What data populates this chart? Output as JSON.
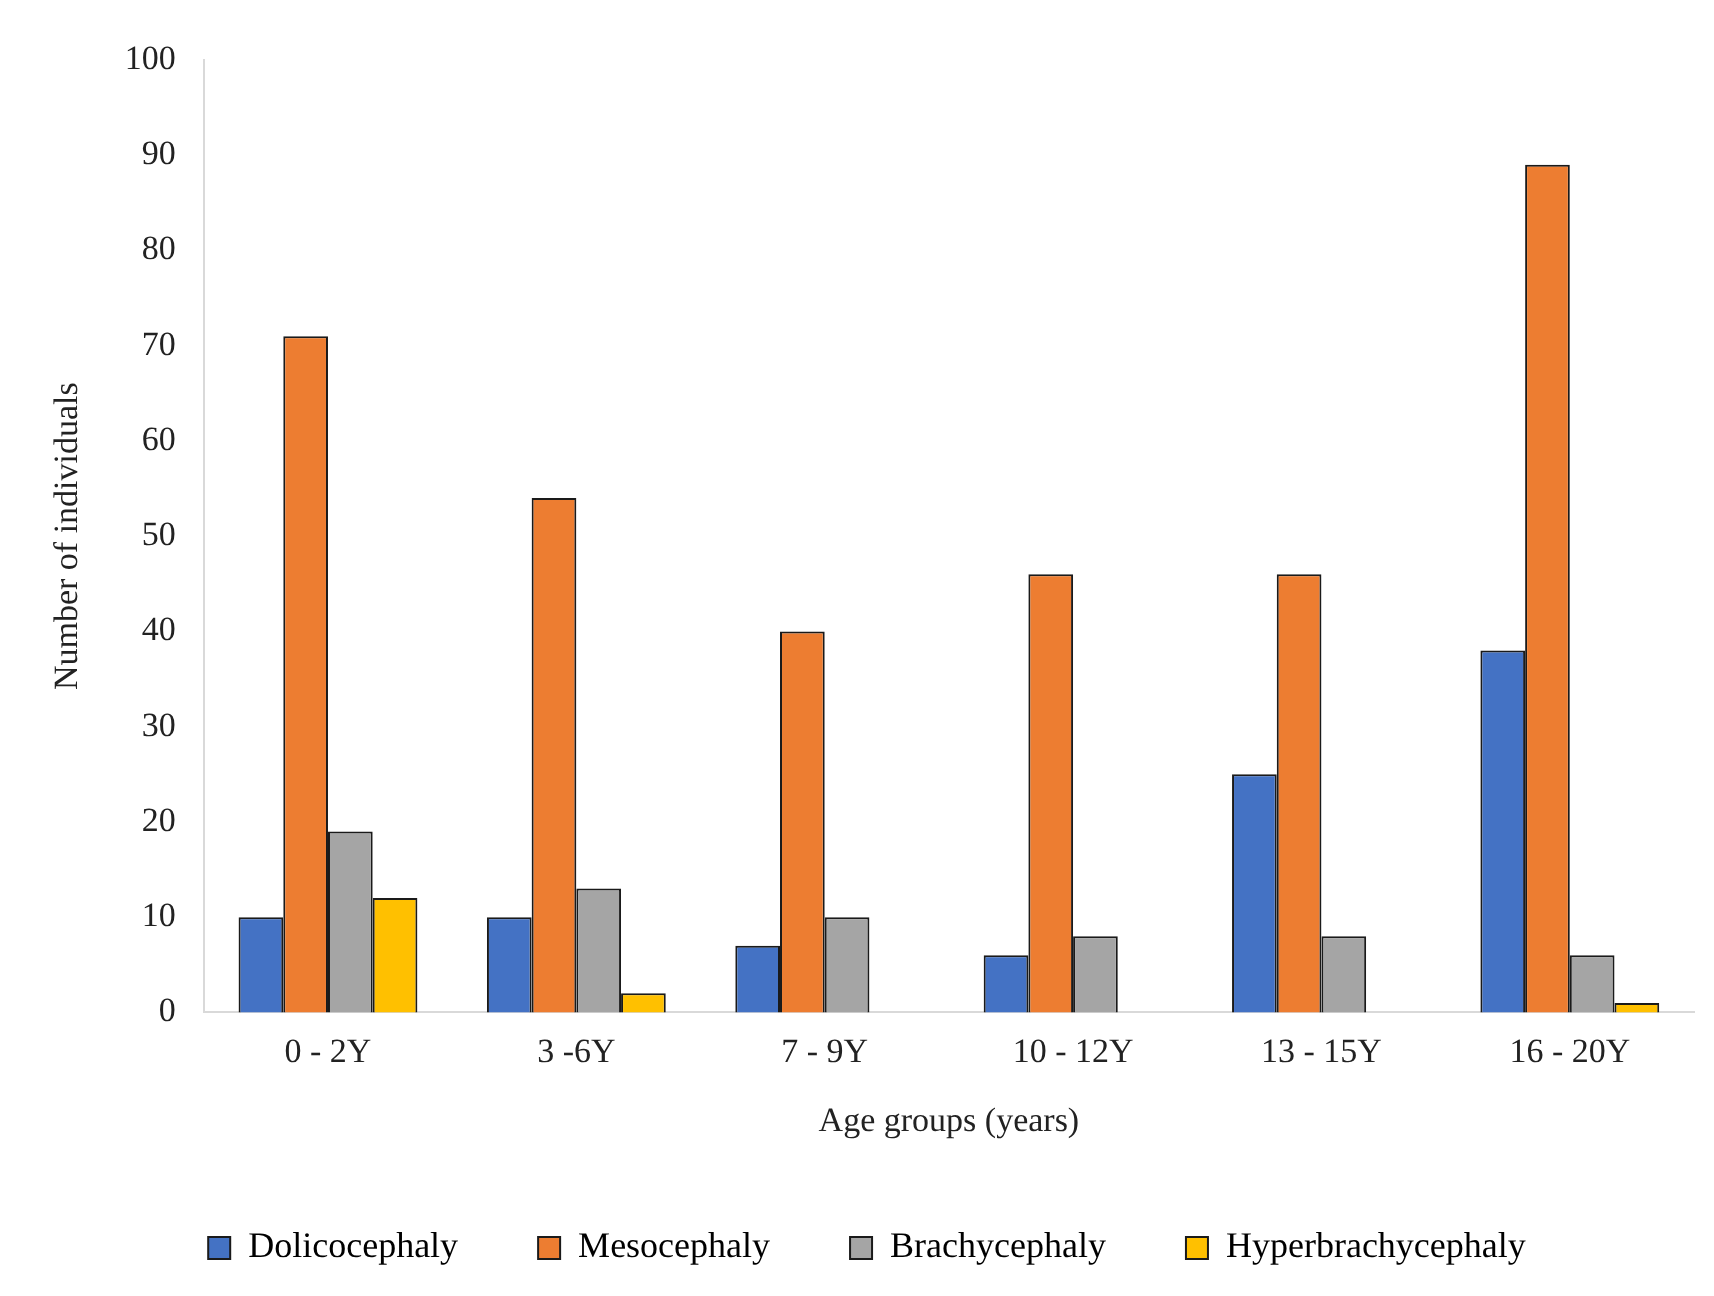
{
  "chart_data": {
    "type": "bar",
    "xlabel": "Age groups (years)",
    "ylabel": "Number of individuals",
    "categories": [
      "0 - 2Y",
      "3 -6Y",
      "7 - 9Y",
      "10 - 12Y",
      "13 - 15Y",
      "16 - 20Y"
    ],
    "series": [
      {
        "name": "Dolicocephaly",
        "color": "#4472c4",
        "values": [
          10,
          10,
          7,
          6,
          25,
          38
        ]
      },
      {
        "name": "Mesocephaly",
        "color": "#ed7d31",
        "values": [
          71,
          54,
          40,
          46,
          46,
          89
        ]
      },
      {
        "name": "Brachycephaly",
        "color": "#a5a5a5",
        "values": [
          19,
          13,
          10,
          8,
          8,
          6
        ]
      },
      {
        "name": "Hyperbrachycephaly",
        "color": "#ffc000",
        "values": [
          12,
          2,
          0,
          0,
          0,
          1
        ]
      }
    ],
    "ylim": [
      0,
      100
    ],
    "yticks": [
      0,
      10,
      20,
      30,
      40,
      50,
      60,
      70,
      80,
      90,
      100
    ],
    "grid": false,
    "legend": "bottom"
  }
}
